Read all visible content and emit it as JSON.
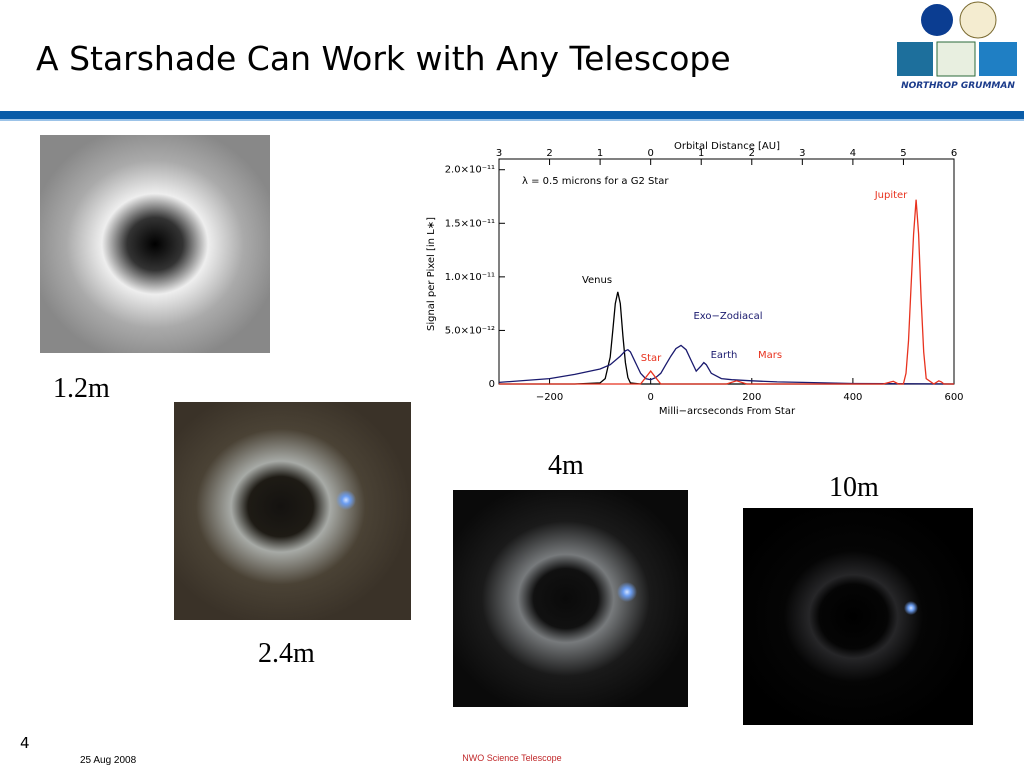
{
  "title": "A Starshade Can Work with Any Telescope",
  "logo_text": "NORTHROP GRUMMAN",
  "captions": [
    "1.2m",
    "2.4m",
    "4m",
    "10m"
  ],
  "footer": {
    "page": "4",
    "date": "25 Aug 2008",
    "name": "NWO Science Telescope"
  },
  "chart_data": {
    "type": "line",
    "x2label": "Orbital Distance [AU]",
    "xlabel": "Milli−arcseconds From Star",
    "ylabel": "Signal per Pixel [in L∗]",
    "note": "λ = 0.5 microns for a G2 Star",
    "xlim": [
      -300,
      600
    ],
    "xticks": [
      {
        "value": -200,
        "label": "−200"
      },
      0,
      200,
      400,
      600
    ],
    "x2lim": [
      -3,
      6
    ],
    "x2ticks": [
      {
        "value": -3,
        "label": "3"
      },
      {
        "value": -2,
        "label": "2"
      },
      {
        "value": -1,
        "label": "1"
      },
      0,
      1,
      2,
      3,
      4,
      5,
      6
    ],
    "ylim": [
      0,
      2.1e-11
    ],
    "yticks": [
      0,
      {
        "value": 5e-12,
        "label": "5.0×10⁻¹²"
      },
      {
        "value": 1e-11,
        "label": "1.0×10⁻¹¹"
      },
      {
        "value": 1.5e-11,
        "label": "1.5×10⁻¹¹"
      },
      {
        "value": 2e-11,
        "label": "2.0×10⁻¹¹"
      }
    ],
    "series": [
      {
        "color": "#000000",
        "x": [
          -300,
          -150,
          -100,
          -90,
          -80,
          -75,
          -70,
          -65,
          -60,
          -55,
          -50,
          -45,
          -40,
          -20,
          0,
          600
        ],
        "values": [
          0,
          0,
          1e-13,
          5e-13,
          2.5e-12,
          5e-12,
          7.5e-12,
          8.6e-12,
          7.5e-12,
          4.5e-12,
          2e-12,
          6e-13,
          1e-13,
          0,
          0,
          0
        ]
      },
      {
        "color": "#1a1a6e",
        "x": [
          -300,
          -200,
          -150,
          -100,
          -80,
          -60,
          -50,
          -45,
          -40,
          -30,
          -20,
          -10,
          0,
          10,
          20,
          30,
          40,
          50,
          60,
          70,
          80,
          90,
          100,
          105,
          110,
          120,
          140,
          160,
          200,
          250,
          300,
          400,
          600
        ],
        "values": [
          1.5e-13,
          5e-13,
          9e-13,
          1.4e-12,
          1.8e-12,
          2.6e-12,
          3.1e-12,
          3.2e-12,
          3e-12,
          2e-12,
          1e-12,
          5e-13,
          4e-13,
          6e-13,
          1e-12,
          1.8e-12,
          2.6e-12,
          3.3e-12,
          3.6e-12,
          3.2e-12,
          2.2e-12,
          1.2e-12,
          1.7e-12,
          2e-12,
          1.8e-12,
          1e-12,
          5e-13,
          4e-13,
          3e-13,
          2e-13,
          1.5e-13,
          5e-14,
          0
        ]
      },
      {
        "color": "#e8321e",
        "x": [
          -300,
          -20,
          -10,
          0,
          10,
          20,
          40,
          150,
          170,
          190,
          460,
          480,
          490,
          500,
          505,
          510,
          515,
          520,
          525,
          530,
          535,
          540,
          545,
          560,
          570,
          575,
          580,
          600
        ],
        "values": [
          0,
          0,
          6e-13,
          1.2e-12,
          6e-13,
          0,
          0,
          0,
          3e-13,
          0,
          0,
          2.5e-13,
          0,
          0,
          1e-12,
          4e-12,
          9e-12,
          1.4e-11,
          1.72e-11,
          1.4e-11,
          8e-12,
          3e-12,
          5e-13,
          0,
          3e-13,
          2e-13,
          0,
          0
        ]
      }
    ],
    "annotations": [
      "Venus",
      "Exo−Zodiacal",
      "Star",
      "Earth",
      "Mars",
      "Jupiter"
    ]
  }
}
